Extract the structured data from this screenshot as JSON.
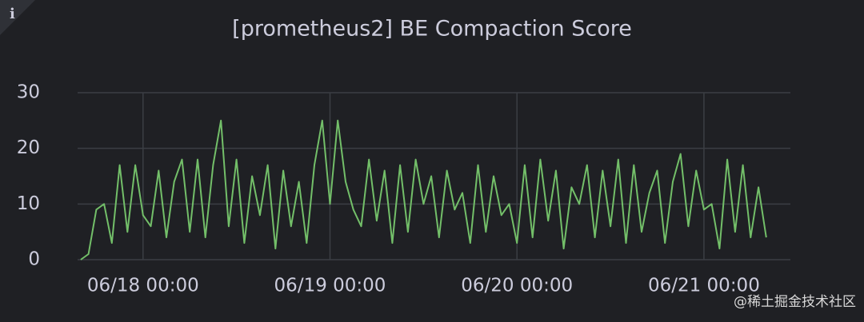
{
  "chart_data": {
    "type": "line",
    "title": "[prometheus2] BE Compaction Score",
    "info_icon": "i",
    "watermark": "@稀土掘金技术社区",
    "x": [
      -8,
      -7,
      -6,
      -5,
      -4,
      -3,
      -2,
      -1,
      0,
      1,
      2,
      3,
      4,
      5,
      6,
      7,
      8,
      9,
      10,
      11,
      12,
      13,
      14,
      15,
      16,
      17,
      18,
      19,
      20,
      21,
      22,
      23,
      24,
      25,
      26,
      27,
      28,
      29,
      30,
      31,
      32,
      33,
      34,
      35,
      36,
      37,
      38,
      39,
      40,
      41,
      42,
      43,
      44,
      45,
      46,
      47,
      48,
      49,
      50,
      51,
      52,
      53,
      54,
      55,
      56,
      57,
      58,
      59,
      60,
      61,
      62,
      63,
      64,
      65,
      66,
      67,
      68,
      69,
      70,
      71,
      72,
      73,
      74,
      75,
      76,
      77,
      78,
      79,
      80
    ],
    "values": [
      0,
      1,
      9,
      10,
      3,
      17,
      5,
      17,
      8,
      6,
      16,
      4,
      14,
      18,
      5,
      18,
      4,
      17,
      25,
      6,
      18,
      3,
      15,
      8,
      17,
      2,
      16,
      6,
      14,
      3,
      17,
      25,
      10,
      25,
      14,
      9,
      6,
      18,
      7,
      16,
      3,
      17,
      5,
      18,
      10,
      15,
      4,
      16,
      9,
      12,
      3,
      17,
      5,
      15,
      8,
      10,
      3,
      17,
      4,
      18,
      7,
      16,
      2,
      13,
      10,
      17,
      4,
      16,
      6,
      18,
      3,
      17,
      5,
      12,
      16,
      3,
      14,
      19,
      6,
      16,
      9,
      10,
      2,
      18,
      5,
      17,
      4,
      13,
      4
    ],
    "color": "#73bf69",
    "xlim": [
      -8.4,
      83.1
    ],
    "xticks": [
      {
        "value": 0,
        "label": "06/18 00:00"
      },
      {
        "value": 24,
        "label": "06/19 00:00"
      },
      {
        "value": 48,
        "label": "06/20 00:00"
      },
      {
        "value": 72,
        "label": "06/21 00:00"
      }
    ],
    "ylim": [
      0,
      30
    ],
    "yticks": [
      0,
      10,
      20,
      30
    ],
    "grid": true
  }
}
